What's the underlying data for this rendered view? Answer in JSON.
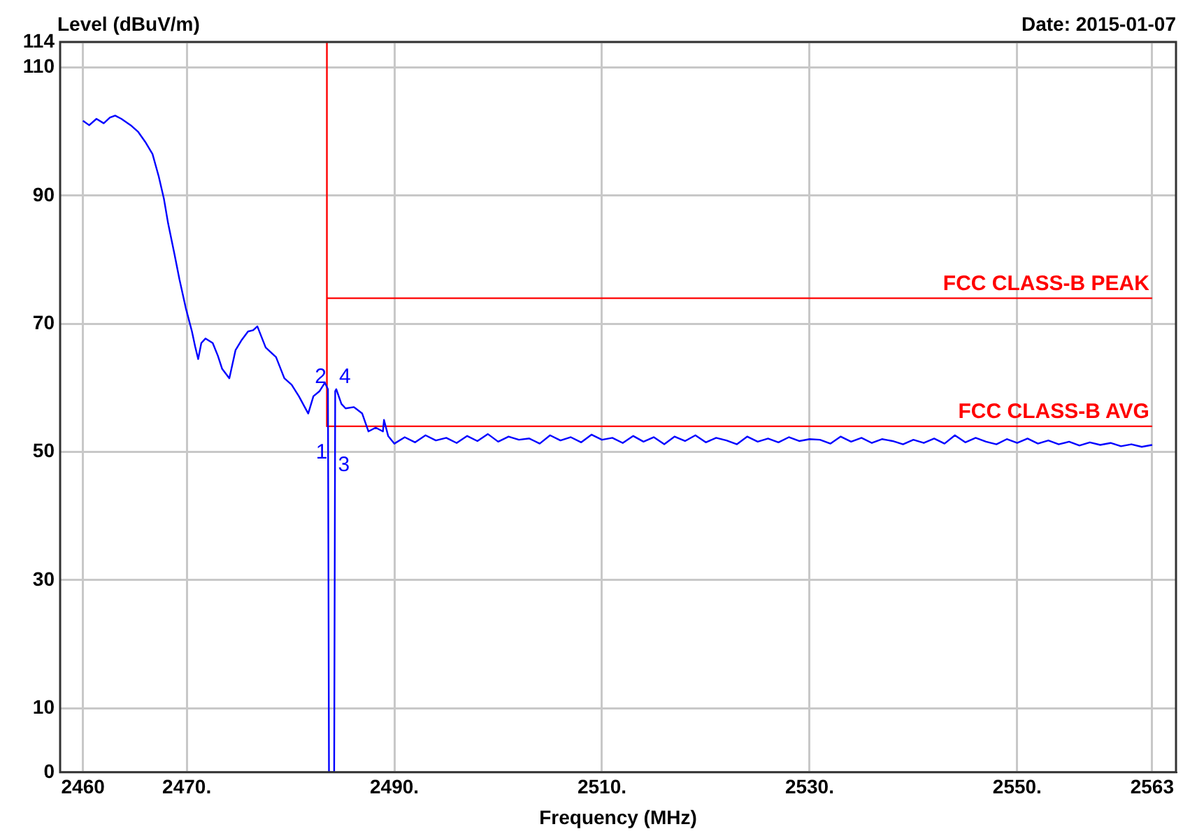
{
  "chart_data": {
    "type": "line",
    "ylabel": "Level (dBuV/m)",
    "xlabel": "Frequency (MHz)",
    "annotations": [
      "Date: 2015-01-07",
      {
        "text": "1",
        "x": 2483.7,
        "y": 48
      },
      {
        "text": "2",
        "x": 2483.6,
        "y": 59.8
      },
      {
        "text": "3",
        "x": 2484.3,
        "y": 46
      },
      {
        "text": "4",
        "x": 2484.4,
        "y": 59.8
      }
    ],
    "xlim": [
      2457.8,
      2565.3
    ],
    "ylim": [
      0,
      114
    ],
    "xticks": [
      2460,
      {
        "value": 2470,
        "label": "2470."
      },
      {
        "value": 2490,
        "label": "2490."
      },
      {
        "value": 2510,
        "label": "2510."
      },
      {
        "value": 2530,
        "label": "2530."
      },
      {
        "value": 2550,
        "label": "2550."
      },
      2563
    ],
    "yticks": [
      0,
      10,
      30,
      50,
      70,
      90,
      110,
      114
    ],
    "grid": true,
    "legend": false,
    "marker": "none",
    "line_style": "solid",
    "series": [
      {
        "color": "#0000ff",
        "x": [
          2460,
          2460.6,
          2461.3,
          2462,
          2462.6,
          2463.1,
          2463.7,
          2464.6,
          2465.3,
          2466,
          2466.7,
          2467.3,
          2467.8,
          2468.2,
          2468.8,
          2469.3,
          2469.9,
          2470.5,
          2470.8,
          2471.1,
          2471.4,
          2471.8,
          2472.5,
          2473,
          2473.4,
          2474.1,
          2474.7,
          2475.3,
          2475.9,
          2476.4,
          2476.8,
          2477.6,
          2478.6,
          2479.4,
          2480.1,
          2480.8,
          2481.7,
          2482.2,
          2482.8,
          2483.3,
          2483.6,
          2483.7,
          2484.2,
          2484.3,
          2484.4,
          2484.9,
          2485.3,
          2486.1,
          2486.9,
          2487.5,
          2488.2,
          2488.9,
          2489,
          2489.4,
          2490,
          2491,
          2492,
          2493,
          2494,
          2495,
          2496,
          2497,
          2498,
          2499,
          2500,
          2501,
          2502,
          2503,
          2504,
          2505,
          2506,
          2507,
          2508,
          2509,
          2510,
          2511,
          2512,
          2513,
          2514,
          2515,
          2516,
          2517,
          2518,
          2519,
          2520,
          2521,
          2522,
          2523,
          2524,
          2525,
          2526,
          2527,
          2528,
          2529,
          2530,
          2531,
          2532,
          2533,
          2534,
          2535,
          2536,
          2537,
          2538,
          2539,
          2540,
          2541,
          2542,
          2543,
          2544,
          2545,
          2546,
          2547,
          2548,
          2549,
          2550,
          2551,
          2552,
          2553,
          2554,
          2555,
          2556,
          2557,
          2558,
          2559,
          2560,
          2561,
          2562,
          2563
        ],
        "values": [
          101.7,
          101,
          102,
          101.3,
          102.2,
          102.5,
          102,
          101,
          100,
          98.4,
          96.5,
          93,
          89.5,
          85.7,
          81,
          76.9,
          72.5,
          68.8,
          66.5,
          64.5,
          67,
          67.7,
          67,
          65,
          63,
          61.5,
          65.9,
          67.5,
          68.8,
          69,
          69.6,
          66.3,
          64.8,
          61.5,
          60.5,
          58.7,
          56,
          58.7,
          59.5,
          60.8,
          59.8,
          0,
          0,
          59.5,
          59.8,
          57.5,
          56.8,
          57,
          56,
          53.2,
          53.8,
          53.2,
          55,
          52.5,
          51.3,
          52.3,
          51.5,
          52.6,
          51.8,
          52.2,
          51.4,
          52.5,
          51.7,
          52.8,
          51.6,
          52.4,
          51.9,
          52.1,
          51.3,
          52.6,
          51.8,
          52.3,
          51.5,
          52.7,
          51.9,
          52.2,
          51.4,
          52.5,
          51.6,
          52.3,
          51.2,
          52.4,
          51.7,
          52.6,
          51.5,
          52.2,
          51.8,
          51.2,
          52.4,
          51.6,
          52.1,
          51.5,
          52.3,
          51.7,
          52,
          51.9,
          51.3,
          52.4,
          51.6,
          52.2,
          51.4,
          52,
          51.7,
          51.2,
          51.9,
          51.4,
          52.1,
          51.3,
          52.6,
          51.5,
          52.2,
          51.6,
          51.2,
          52,
          51.4,
          52.1,
          51.3,
          51.8,
          51.2,
          51.6,
          51,
          51.5,
          51.1,
          51.4,
          50.9,
          51.2,
          50.8,
          51.1
        ]
      },
      {
        "name": "FCC CLASS-B PEAK",
        "color": "#ff0000",
        "x": [
          2483.5,
          2563
        ],
        "values": [
          74,
          74
        ]
      },
      {
        "name": "FCC CLASS-B AVG",
        "color": "#ff0000",
        "x": [
          2483.5,
          2483.5,
          2563
        ],
        "values": [
          114,
          54,
          54
        ]
      }
    ]
  }
}
